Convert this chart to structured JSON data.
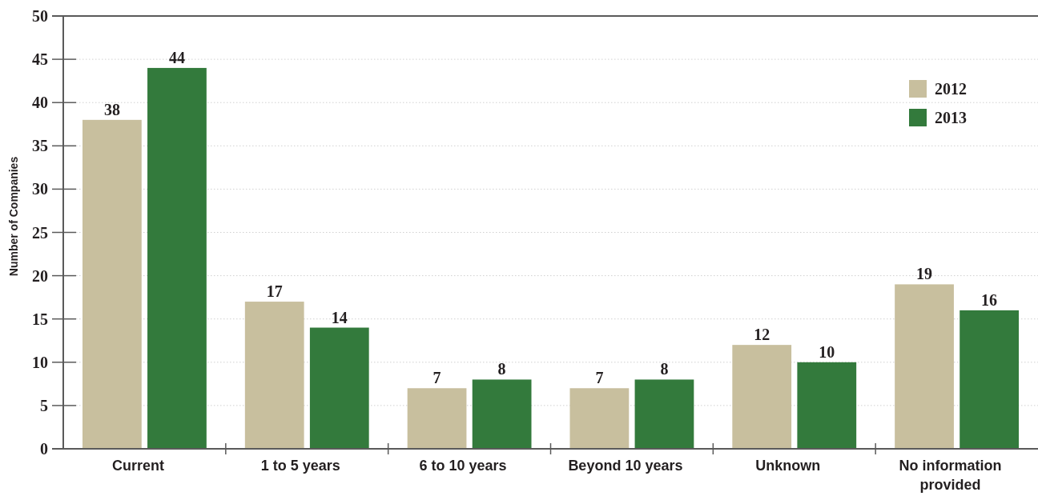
{
  "chart_data": {
    "type": "bar",
    "ylabel": "Number of Companies",
    "categories": [
      "Current",
      "1 to 5 years",
      "6 to 10 years",
      "Beyond 10 years",
      "Unknown",
      "No information provided"
    ],
    "series": [
      {
        "name": "2012",
        "color": "#c8bf9e",
        "values": [
          38,
          17,
          7,
          7,
          12,
          19
        ]
      },
      {
        "name": "2013",
        "color": "#337a3c",
        "values": [
          44,
          14,
          8,
          8,
          10,
          16
        ]
      }
    ],
    "ylim": [
      0,
      50
    ],
    "yticks": [
      0,
      5,
      10,
      15,
      20,
      25,
      30,
      35,
      40,
      45,
      50
    ],
    "grid": "y",
    "legend": "top right",
    "data_labels": true
  }
}
